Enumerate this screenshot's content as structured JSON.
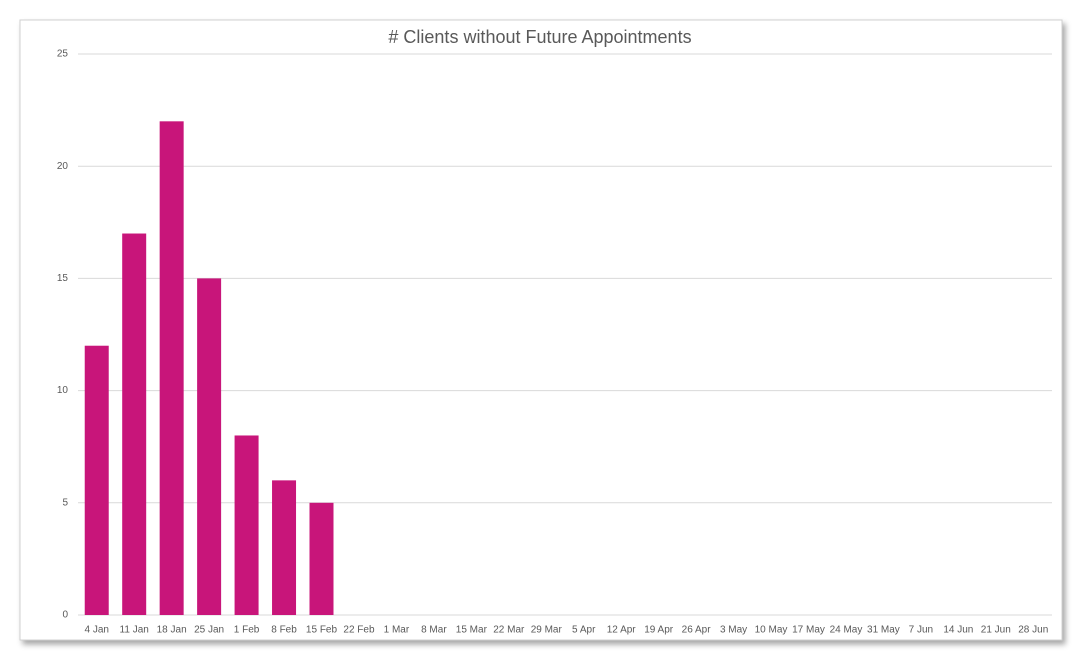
{
  "chart_data": {
    "type": "bar",
    "title": "# Clients without Future Appointments",
    "categories": [
      "4 Jan",
      "11 Jan",
      "18 Jan",
      "25 Jan",
      "1 Feb",
      "8 Feb",
      "15 Feb",
      "22 Feb",
      "1 Mar",
      "8 Mar",
      "15 Mar",
      "22 Mar",
      "29 Mar",
      "5 Apr",
      "12 Apr",
      "19 Apr",
      "26 Apr",
      "3 May",
      "10 May",
      "17 May",
      "24 May",
      "31 May",
      "7 Jun",
      "14 Jun",
      "21 Jun",
      "28 Jun"
    ],
    "values": [
      12,
      17,
      22,
      15,
      8,
      6,
      5,
      null,
      null,
      null,
      null,
      null,
      null,
      null,
      null,
      null,
      null,
      null,
      null,
      null,
      null,
      null,
      null,
      null,
      null,
      null
    ],
    "color": "#c8157a",
    "ylim": [
      0,
      25
    ],
    "yticks": [
      0,
      5,
      10,
      15,
      20,
      25
    ],
    "grid": true
  }
}
